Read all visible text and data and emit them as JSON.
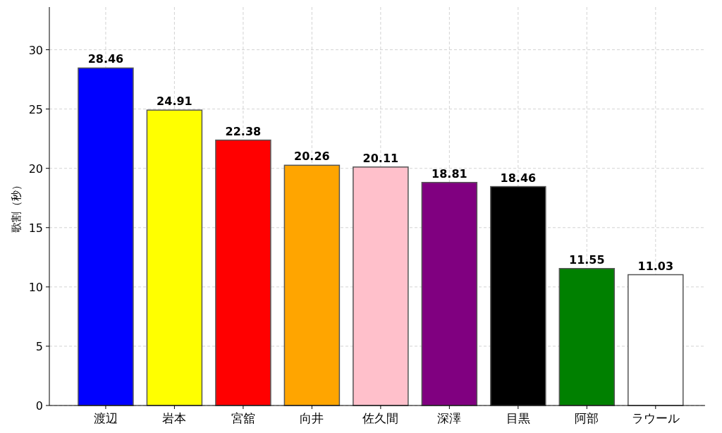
{
  "chart_data": {
    "type": "bar",
    "ylabel": "歌割（秒）",
    "categories": [
      "渡辺",
      "岩本",
      "宮舘",
      "向井",
      "佐久間",
      "深澤",
      "目黒",
      "阿部",
      "ラウール"
    ],
    "values": [
      28.46,
      24.91,
      22.38,
      20.26,
      20.11,
      18.81,
      18.46,
      11.55,
      11.03
    ],
    "colors": [
      "#0000ff",
      "#ffff00",
      "#ff0000",
      "#ffa500",
      "#ffc0cb",
      "#800080",
      "#000000",
      "#008000",
      "#ffffff"
    ],
    "ylim": [
      0,
      33.6
    ],
    "yticks": [
      0,
      5,
      10,
      15,
      20,
      25,
      30
    ],
    "grid": true,
    "data_labels": true
  }
}
